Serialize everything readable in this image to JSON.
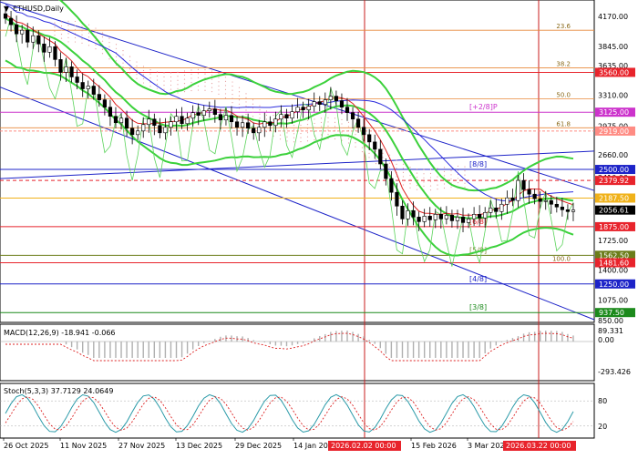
{
  "chart_data": {
    "type": "candlestick",
    "symbol": "ETHUSD",
    "title": "ETHUSD,Daily",
    "x_labels": [
      "26 Oct 2025",
      "11 Nov 2025",
      "27 Nov 2025",
      "13 Dec 2025",
      "29 Dec 2025",
      "14 Jan 2026",
      "15 Feb 2026",
      "3 Mar 2026"
    ],
    "x_ticks_red": [
      "2026.02.02 00:00",
      "2026.03.22 00:00"
    ],
    "price_axis": [
      "4170.00",
      "3845.00",
      "3635.00",
      "3310.00",
      "2975.00",
      "2660.00",
      "2410.00",
      "2056.61",
      "1725.00",
      "1400.00",
      "1075.00",
      "850.00"
    ],
    "range": [
      850,
      4330
    ],
    "current_price": "2056.61",
    "levels": [
      {
        "price": 3560.0,
        "label": "3560.00",
        "bg": "#e8242c",
        "fg": "#ffffff"
      },
      {
        "price": 3125.0,
        "label": "3125.00",
        "bg": "#cc33cc",
        "fg": "#ffffff"
      },
      {
        "price": 2919.0,
        "label": "2919.00",
        "bg": "#ff8c84",
        "fg": "#ffffff"
      },
      {
        "price": 2500.0,
        "label": "2500.00",
        "bg": "#1d23c8",
        "fg": "#ffffff"
      },
      {
        "price": 2379.92,
        "label": "2379.92",
        "bg": "#e8242c",
        "fg": "#ffffff"
      },
      {
        "price": 2187.5,
        "label": "2187.50",
        "bg": "#f0b21a",
        "fg": "#ffffff"
      },
      {
        "price": 1875.0,
        "label": "1875.00",
        "bg": "#e8242c",
        "fg": "#ffffff"
      },
      {
        "price": 1562.5,
        "label": "1562.50",
        "bg": "#6b7d1a",
        "fg": "#ffffff"
      },
      {
        "price": 1481.6,
        "label": "1481.60",
        "bg": "#e8242c",
        "fg": "#ffffff"
      },
      {
        "price": 1250.0,
        "label": "1250.00",
        "bg": "#1d23c8",
        "fg": "#ffffff"
      },
      {
        "price": 937.5,
        "label": "937.50",
        "bg": "#1c8a1c",
        "fg": "#ffffff"
      }
    ],
    "fibo": [
      {
        "label": "23.6",
        "price": 4020
      },
      {
        "label": "38.2",
        "price": 3610
      },
      {
        "label": "50.0",
        "price": 3270
      },
      {
        "label": "61.8",
        "price": 2955
      },
      {
        "label": "100.0",
        "price": 1481.6
      }
    ],
    "murrey": [
      {
        "label": "[+2/8]P",
        "price": 3125.0,
        "color": "#cc33cc"
      },
      {
        "label": "[8/8]",
        "price": 2500.0,
        "color": "#1d23c8"
      },
      {
        "label": "[6/8]",
        "price": 1875.0,
        "color": "#e8242c"
      },
      {
        "label": "[5/8]",
        "price": 1562.5,
        "color": "#8a8a3a"
      },
      {
        "label": "[4/8]",
        "price": 1250.0,
        "color": "#1d23c8"
      },
      {
        "label": "[3/8]",
        "price": 937.5,
        "color": "#1c8a1c"
      }
    ],
    "candles_close": [
      4150,
      4080,
      3980,
      4020,
      3890,
      3960,
      3870,
      3780,
      3840,
      3700,
      3560,
      3620,
      3510,
      3450,
      3380,
      3410,
      3320,
      3260,
      3180,
      3080,
      3010,
      3060,
      2950,
      2880,
      2920,
      2990,
      3050,
      2980,
      2900,
      2960,
      3020,
      3080,
      3000,
      3060,
      3120,
      3090,
      3140,
      3160,
      3100,
      3040,
      3090,
      3020,
      2960,
      3010,
      2950,
      2900,
      2960,
      3020,
      2980,
      3050,
      3100,
      3060,
      3130,
      3180,
      3150,
      3190,
      3240,
      3210,
      3260,
      3300,
      3250,
      3180,
      3120,
      3050,
      2960,
      2880,
      2800,
      2720,
      2560,
      2400,
      2250,
      2100,
      1960,
      2050,
      1980,
      1930,
      1990,
      1950,
      2010,
      1960,
      2000,
      1940,
      1980,
      1920,
      1960,
      2010,
      1970,
      2030,
      2080,
      2040,
      2120,
      2190,
      2160,
      2380,
      2280,
      2230,
      2180,
      2150,
      2160,
      2120,
      2090,
      2060,
      2040,
      2056.61
    ],
    "macd": {
      "label": "MACD(12,26,9) -18.941 -0.066",
      "axis": [
        "89.331",
        "0.00",
        "-293.426"
      ]
    },
    "stoch": {
      "label": "Stoch(5,3,3) 37.7129 24.0649",
      "axis": [
        "80",
        "20"
      ]
    }
  }
}
